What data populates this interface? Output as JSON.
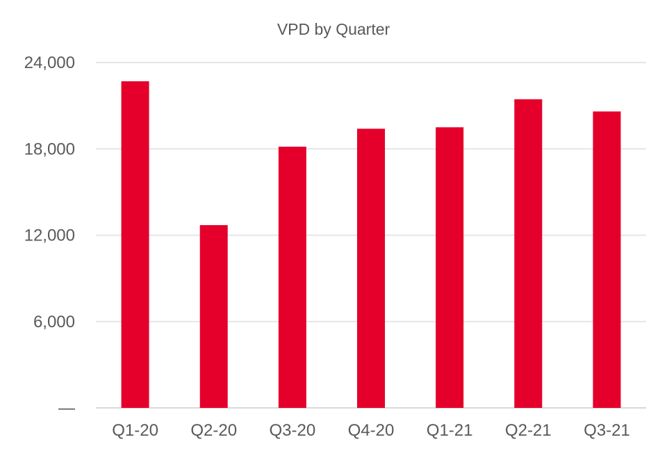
{
  "chart_data": {
    "type": "bar",
    "title": "VPD by Quarter",
    "xlabel": "",
    "ylabel": "",
    "categories": [
      "Q1-20",
      "Q2-20",
      "Q3-20",
      "Q4-20",
      "Q1-21",
      "Q2-21",
      "Q3-21"
    ],
    "values": [
      22700,
      12700,
      18150,
      19400,
      19500,
      21450,
      20600
    ],
    "ylim": [
      0,
      24000
    ],
    "yticks": [
      0,
      6000,
      12000,
      18000,
      24000
    ],
    "ytick_labels": [
      "—",
      "6,000",
      "12,000",
      "18,000",
      "24,000"
    ],
    "grid": true,
    "legend": "none",
    "bar_color": "#e4002b"
  }
}
